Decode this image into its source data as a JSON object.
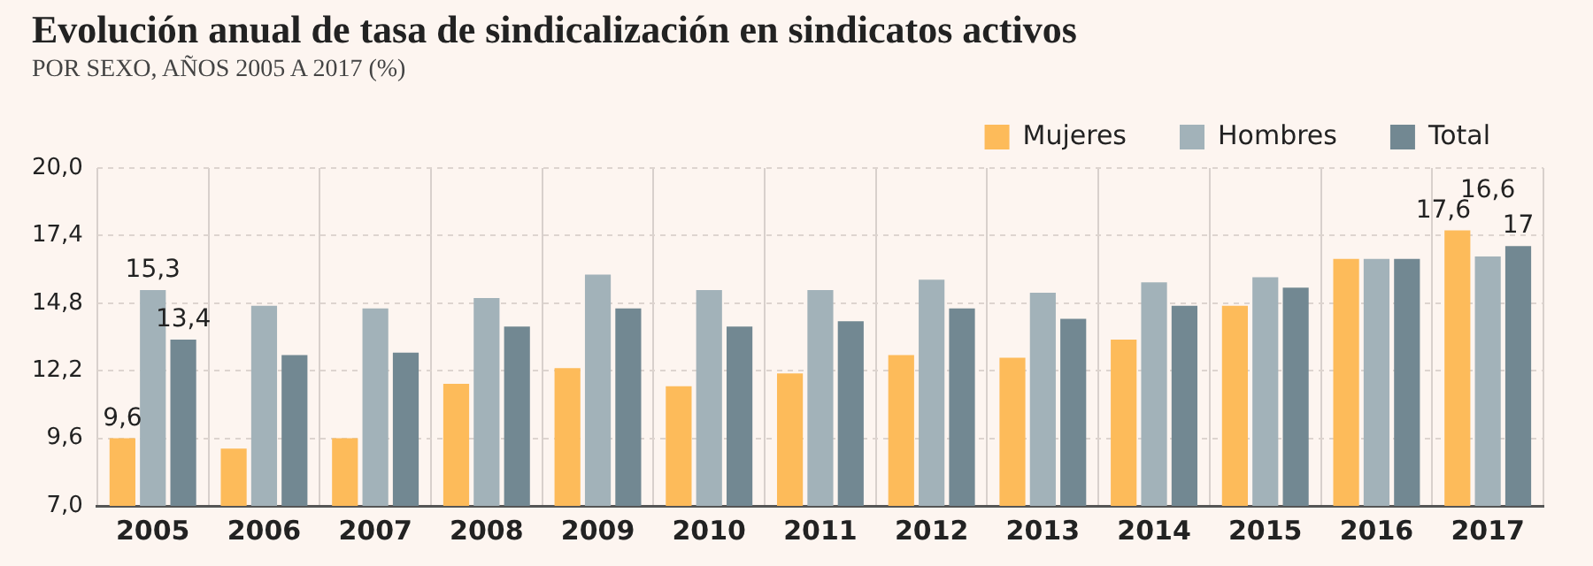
{
  "chart_data": {
    "type": "bar",
    "title": "Evolución anual de tasa de sindicalización en sindicatos activos",
    "subtitle": "POR SEXO, AÑOS 2005 A 2017 (%)",
    "categories": [
      "2005",
      "2006",
      "2007",
      "2008",
      "2009",
      "2010",
      "2011",
      "2012",
      "2013",
      "2014",
      "2015",
      "2016",
      "2017"
    ],
    "series": [
      {
        "name": "Mujeres",
        "color": "#fdbb5a",
        "values": [
          9.6,
          9.2,
          9.6,
          11.7,
          12.3,
          11.6,
          12.1,
          12.8,
          12.7,
          13.4,
          14.7,
          16.5,
          17.6
        ],
        "value_labels": [
          "9,6",
          null,
          null,
          null,
          null,
          null,
          null,
          null,
          null,
          null,
          null,
          null,
          "17,6"
        ]
      },
      {
        "name": "Hombres",
        "color": "#a2b2b9",
        "values": [
          15.3,
          14.7,
          14.6,
          15.0,
          15.9,
          15.3,
          15.3,
          15.7,
          15.2,
          15.6,
          15.8,
          16.5,
          16.6
        ],
        "value_labels": [
          "15,3",
          null,
          null,
          null,
          null,
          null,
          null,
          null,
          null,
          null,
          null,
          null,
          "16,6"
        ]
      },
      {
        "name": "Total",
        "color": "#728892",
        "values": [
          13.4,
          12.8,
          12.9,
          13.9,
          14.6,
          13.9,
          14.1,
          14.6,
          14.2,
          14.7,
          15.4,
          16.5,
          17.0
        ],
        "value_labels": [
          "13,4",
          null,
          null,
          null,
          null,
          null,
          null,
          null,
          null,
          null,
          null,
          null,
          "17"
        ]
      }
    ],
    "ylim": [
      7.0,
      20.0
    ],
    "yticks": [
      {
        "value": 7.0,
        "label": "7,0"
      },
      {
        "value": 9.6,
        "label": "9,6"
      },
      {
        "value": 12.2,
        "label": "12,2"
      },
      {
        "value": 14.8,
        "label": "14,8"
      },
      {
        "value": 17.4,
        "label": "17,4"
      },
      {
        "value": 20.0,
        "label": "20,0"
      }
    ],
    "grid": true,
    "legend": "top right"
  }
}
